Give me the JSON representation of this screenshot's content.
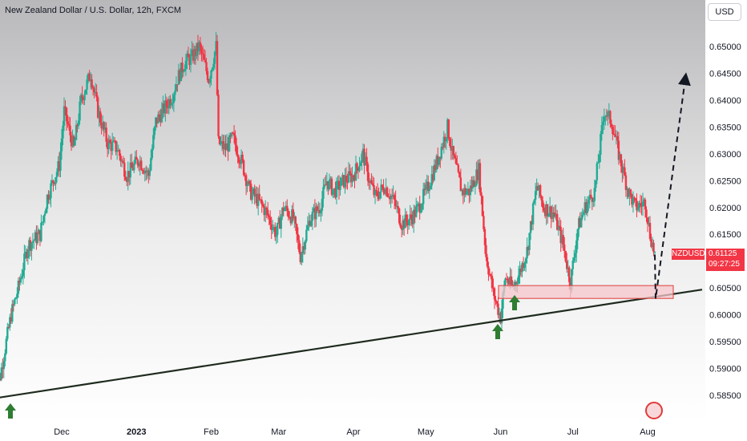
{
  "header": {
    "title": "New Zealand Dollar / U.S. Dollar, 12h, FXCM",
    "currency_button": "USD"
  },
  "price_tag": {
    "symbol": "NZDUSD",
    "last_price": "0.61125",
    "countdown": "09:27:25"
  },
  "colors": {
    "up": "#22ab94",
    "down": "#f23645",
    "trendline": "#1e2a1e",
    "arrow": "#2e7d32",
    "zone_fill": "#f5c6cb",
    "zone_border": "#e03b3b",
    "projection": "#131722"
  },
  "icons": [
    "arrow-up-icon",
    "logo-icon"
  ],
  "chart_data": {
    "type": "candlestick",
    "title": "New Zealand Dollar / U.S. Dollar, 12h, FXCM",
    "y_ticks": [
      "0.65000",
      "0.64500",
      "0.64000",
      "0.63500",
      "0.63000",
      "0.62500",
      "0.62000",
      "0.61500",
      "0.61000",
      "0.60500",
      "0.60000",
      "0.59500",
      "0.59000",
      "0.58500"
    ],
    "ylim": [
      0.5825,
      0.654
    ],
    "x_ticks": [
      "Dec",
      "2023",
      "Feb",
      "Mar",
      "Apr",
      "May",
      "Jun",
      "Jul",
      "Aug"
    ],
    "close_path": [
      [
        "Nov 3",
        0.587
      ],
      [
        "Nov 4",
        0.585
      ],
      [
        "Nov 10",
        0.6
      ],
      [
        "Nov 13",
        0.605
      ],
      [
        "Nov 17",
        0.613
      ],
      [
        "Nov 22",
        0.615
      ],
      [
        "Nov 25",
        0.622
      ],
      [
        "Nov 30",
        0.628
      ],
      [
        "Dec 2",
        0.638
      ],
      [
        "Dec 6",
        0.631
      ],
      [
        "Dec 9",
        0.64
      ],
      [
        "Dec 13",
        0.645
      ],
      [
        "Dec 16",
        0.638
      ],
      [
        "Dec 20",
        0.632
      ],
      [
        "Dec 24",
        0.631
      ],
      [
        "Dec 28",
        0.626
      ],
      [
        "Jan 2",
        0.629
      ],
      [
        "Jan 6",
        0.626
      ],
      [
        "Jan 9",
        0.636
      ],
      [
        "Jan 12",
        0.638
      ],
      [
        "Jan 16",
        0.641
      ],
      [
        "Jan 18",
        0.644
      ],
      [
        "Jan 21",
        0.647
      ],
      [
        "Jan 24",
        0.648
      ],
      [
        "Jan 27",
        0.65
      ],
      [
        "Jan 31",
        0.644
      ],
      [
        "Feb 3",
        0.65
      ],
      [
        "Feb 4",
        0.632
      ],
      [
        "Feb 7",
        0.631
      ],
      [
        "Feb 10",
        0.633
      ],
      [
        "Feb 14",
        0.628
      ],
      [
        "Feb 17",
        0.623
      ],
      [
        "Feb 21",
        0.621
      ],
      [
        "Feb 24",
        0.619
      ],
      [
        "Feb 28",
        0.615
      ],
      [
        "Mar 3",
        0.62
      ],
      [
        "Mar 7",
        0.618
      ],
      [
        "Mar 10",
        0.611
      ],
      [
        "Mar 14",
        0.618
      ],
      [
        "Mar 18",
        0.62
      ],
      [
        "Mar 21",
        0.625
      ],
      [
        "Mar 24",
        0.623
      ],
      [
        "Mar 28",
        0.625
      ],
      [
        "Apr 1",
        0.626
      ],
      [
        "Apr 5",
        0.63
      ],
      [
        "Apr 7",
        0.626
      ],
      [
        "Apr 10",
        0.622
      ],
      [
        "Apr 14",
        0.624
      ],
      [
        "Apr 18",
        0.621
      ],
      [
        "Apr 21",
        0.617
      ],
      [
        "Apr 25",
        0.618
      ],
      [
        "Apr 28",
        0.62
      ],
      [
        "May 2",
        0.624
      ],
      [
        "May 6",
        0.629
      ],
      [
        "May 10",
        0.635
      ],
      [
        "May 12",
        0.63
      ],
      [
        "May 16",
        0.623
      ],
      [
        "May 19",
        0.623
      ],
      [
        "May 23",
        0.627
      ],
      [
        "May 26",
        0.611
      ],
      [
        "May 29",
        0.604
      ],
      [
        "Jun 1",
        0.5995
      ],
      [
        "Jun 3",
        0.607
      ],
      [
        "Jun 6",
        0.605
      ],
      [
        "Jun 9",
        0.608
      ],
      [
        "Jun 12",
        0.612
      ],
      [
        "Jun 16",
        0.624
      ],
      [
        "Jun 19",
        0.62
      ],
      [
        "Jun 23",
        0.619
      ],
      [
        "Jun 27",
        0.613
      ],
      [
        "Jun 30",
        0.606
      ],
      [
        "Jul 3",
        0.616
      ],
      [
        "Jul 6",
        0.62
      ],
      [
        "Jul 10",
        0.623
      ],
      [
        "Jul 14",
        0.638
      ],
      [
        "Jul 17",
        0.636
      ],
      [
        "Jul 20",
        0.63
      ],
      [
        "Jul 24",
        0.623
      ],
      [
        "Jul 27",
        0.62
      ],
      [
        "Jul 31",
        0.621
      ],
      [
        "Aug 2",
        0.615
      ],
      [
        "Aug 4",
        0.6112
      ]
    ],
    "annotations": {
      "trendline": [
        [
          "Nov 4",
          0.5845
        ],
        [
          "Aug 16",
          0.6047
        ]
      ],
      "support_zone": [
        0.6035,
        0.605
      ],
      "projection_target": 0.644
    }
  }
}
